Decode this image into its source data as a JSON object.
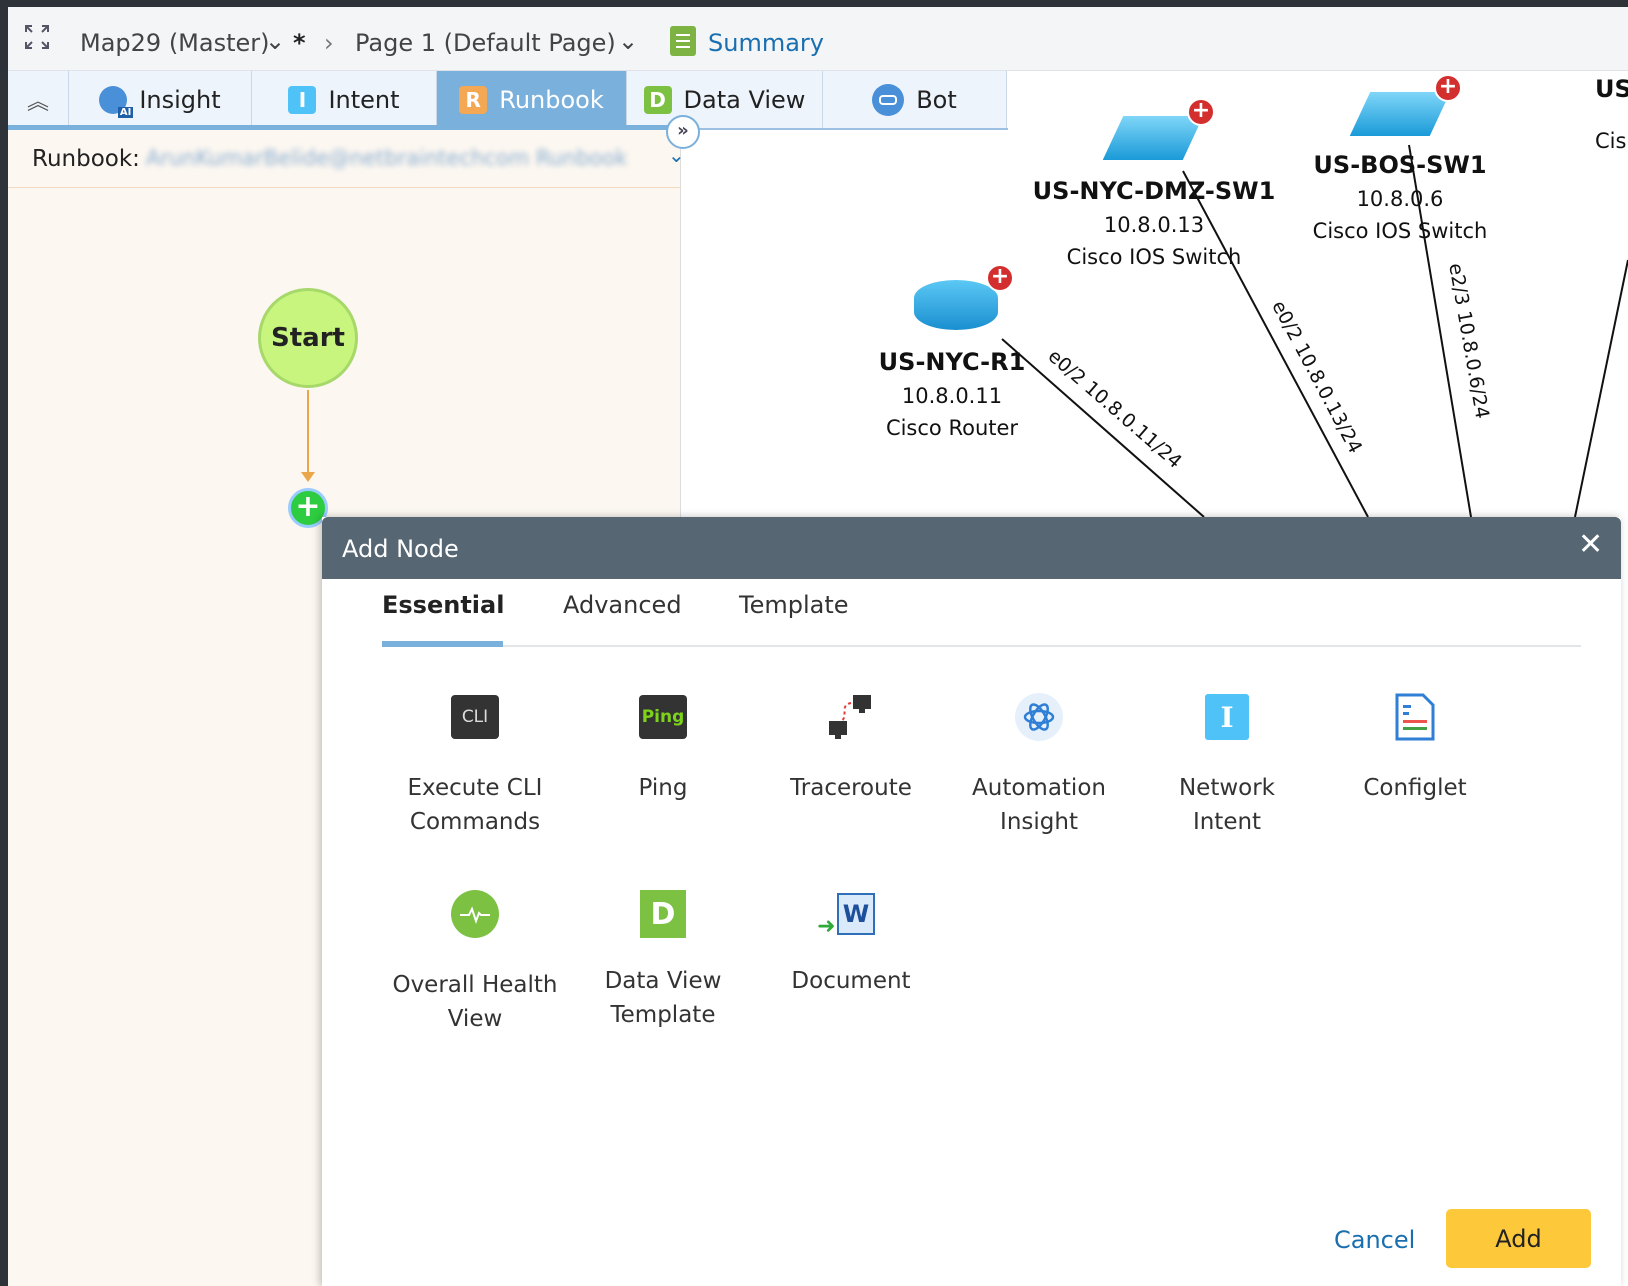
{
  "header": {
    "map_name": "Map29 (Master)",
    "modified_marker": "*",
    "page_name": "Page 1  (Default Page)",
    "summary_label": "Summary"
  },
  "tabs": [
    {
      "label": "Insight",
      "badge": "AI"
    },
    {
      "label": "Intent",
      "icon_letter": "I"
    },
    {
      "label": "Runbook",
      "icon_letter": "R",
      "active": true
    },
    {
      "label": "Data View",
      "icon_letter": "D"
    },
    {
      "label": "Bot"
    }
  ],
  "runbook": {
    "label": "Runbook:",
    "value": "ArunKumarBelide@netbraintechcom Runbook"
  },
  "flow": {
    "start_label": "Start"
  },
  "map": {
    "devices": [
      {
        "name": "US-NYC-R1",
        "ip": "10.8.0.11",
        "type": "Cisco Router"
      },
      {
        "name": "US-NYC-DMZ-SW1",
        "ip": "10.8.0.13",
        "type": "Cisco IOS Switch"
      },
      {
        "name": "US-BOS-SW1",
        "ip": "10.8.0.6",
        "type": "Cisco IOS Switch"
      },
      {
        "name": "US",
        "type": "Cis"
      }
    ],
    "links": [
      "e0/2 10.8.0.11/24",
      "e0/2 10.8.0.13/24",
      "e2/3 10.8.0.6/24"
    ]
  },
  "dialog": {
    "title": "Add Node",
    "tabs": [
      "Essential",
      "Advanced",
      "Template"
    ],
    "active_tab": "Essential",
    "items": [
      {
        "label1": "Execute CLI",
        "label2": "Commands",
        "icon": "cli-icon",
        "icon_text": "CLI"
      },
      {
        "label1": "Ping",
        "label2": "",
        "icon": "ping-icon",
        "icon_text": "Ping"
      },
      {
        "label1": "Traceroute",
        "label2": "",
        "icon": "traceroute-icon"
      },
      {
        "label1": "Automation",
        "label2": "Insight",
        "icon": "atom-icon"
      },
      {
        "label1": "Network",
        "label2": "Intent",
        "icon": "intent-icon",
        "icon_text": "I"
      },
      {
        "label1": "Configlet",
        "label2": "",
        "icon": "configlet-icon"
      },
      {
        "label1": "Overall Health",
        "label2": "View",
        "icon": "health-icon"
      },
      {
        "label1": "Data View",
        "label2": "Template",
        "icon": "dataview-icon",
        "icon_text": "D"
      },
      {
        "label1": "Document",
        "label2": "",
        "icon": "word-document-icon",
        "icon_text": "W"
      }
    ],
    "cancel_label": "Cancel",
    "add_label": "Add"
  },
  "colors": {
    "accent": "#7ab0dc",
    "add_button": "#fdc93b",
    "dialog_header": "#566673",
    "start_node": "#c8f57e",
    "link": "#1a6fb0"
  }
}
